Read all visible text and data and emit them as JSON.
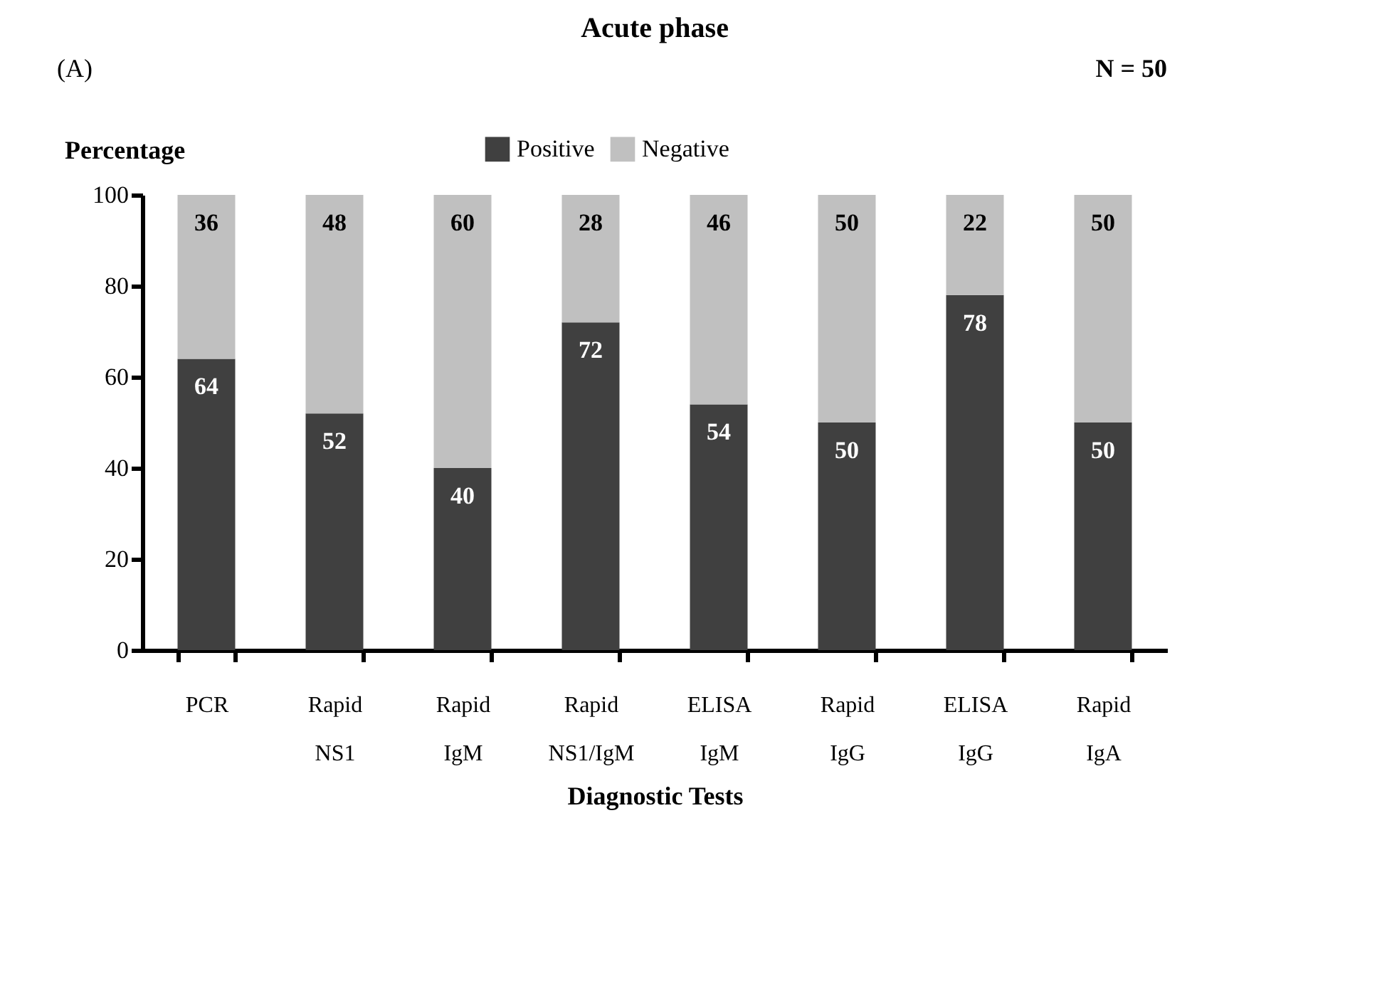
{
  "chart_data": {
    "type": "bar",
    "title": "Acute phase",
    "xlabel": "Diagnostic Tests",
    "ylabel": "Percentage",
    "categories": [
      "PCR",
      "Rapid NS1",
      "Rapid IgM",
      "Rapid NS1/IgM",
      "ELISA IgM",
      "Rapid IgG",
      "ELISA IgG",
      "Rapid IgA"
    ],
    "series": [
      {
        "name": "Positive",
        "color": "#404040",
        "values": [
          64,
          52,
          40,
          72,
          54,
          50,
          78,
          50
        ]
      },
      {
        "name": "Negative",
        "color": "#c0c0c0",
        "values": [
          36,
          48,
          60,
          28,
          46,
          50,
          22,
          50
        ]
      }
    ],
    "stacked": true,
    "data_labels": true,
    "ylim": [
      0,
      100
    ],
    "yticks": [
      0,
      20,
      40,
      60,
      80,
      100
    ],
    "grid": false,
    "legend": "top",
    "annotations": [
      "(A)",
      "N = 50"
    ]
  }
}
